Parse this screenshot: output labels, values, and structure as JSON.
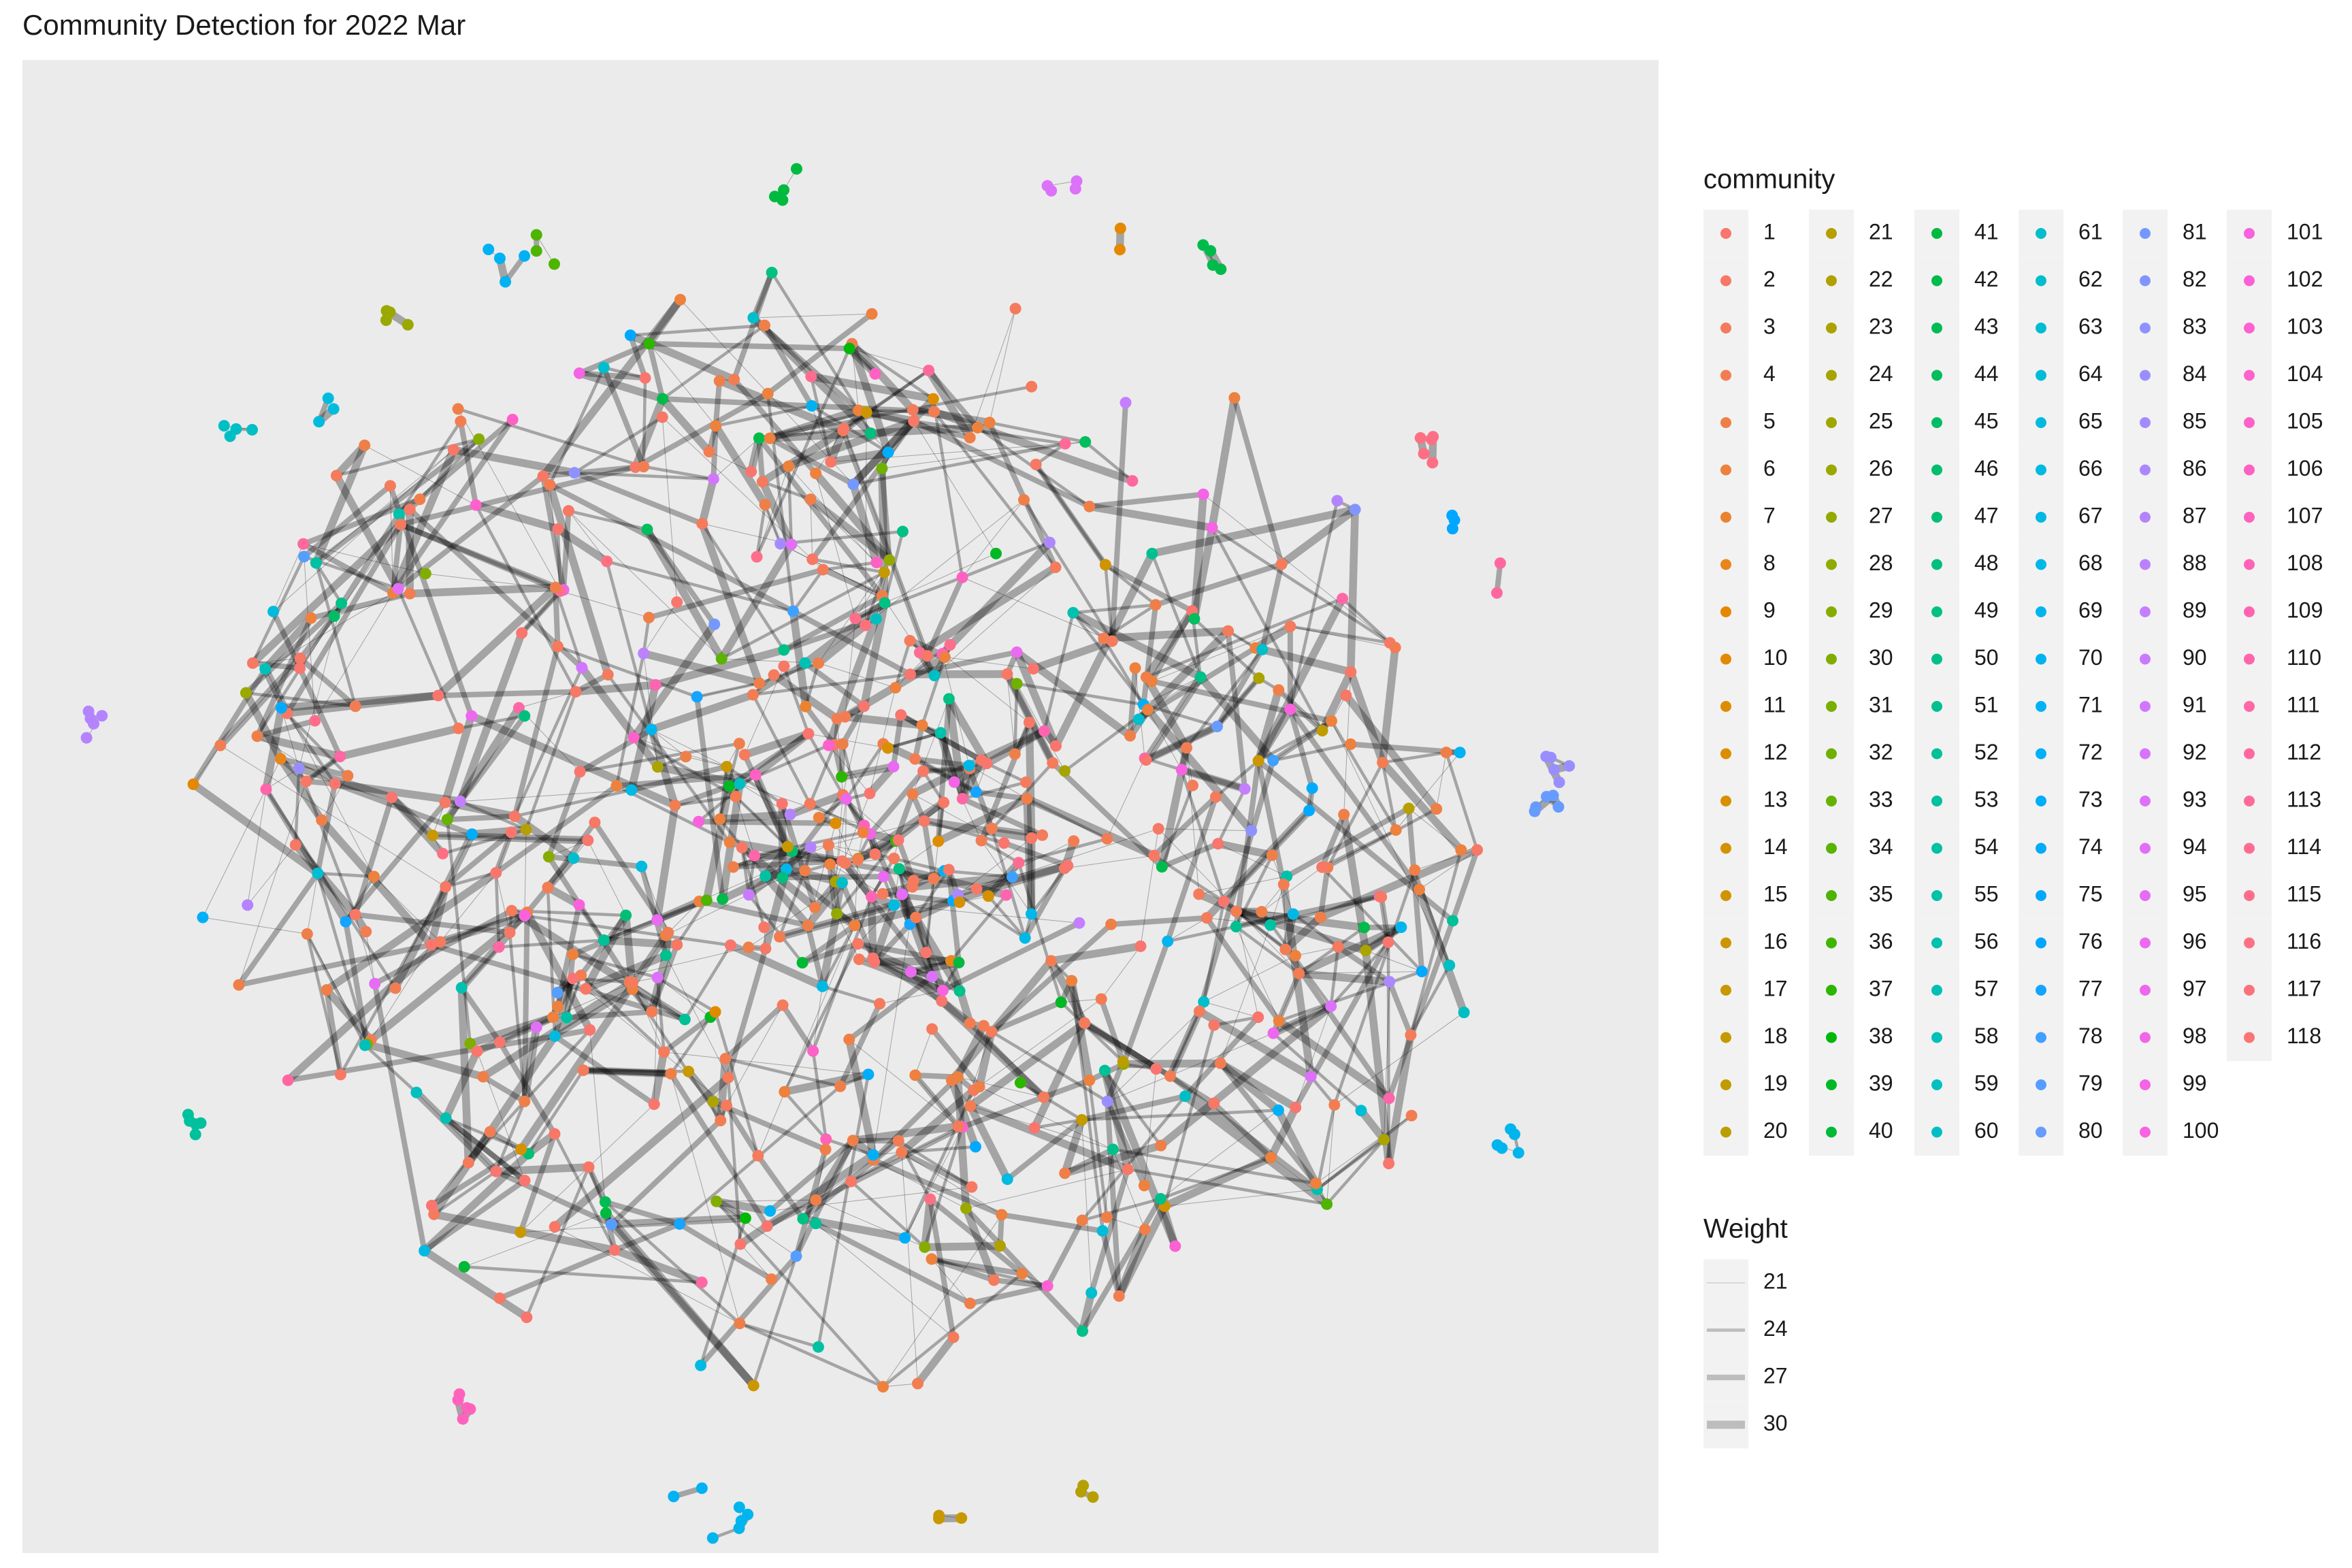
{
  "chart_data": {
    "type": "network",
    "title": "Community Detection for 2022 Mar",
    "community_legend": {
      "title": "community",
      "items": [
        "1",
        "2",
        "3",
        "4",
        "5",
        "6",
        "7",
        "8",
        "9",
        "10",
        "11",
        "12",
        "13",
        "14",
        "15",
        "16",
        "17",
        "18",
        "19",
        "20",
        "21",
        "22",
        "23",
        "24",
        "25",
        "26",
        "27",
        "28",
        "29",
        "30",
        "31",
        "32",
        "33",
        "34",
        "35",
        "36",
        "37",
        "38",
        "39",
        "40",
        "41",
        "42",
        "43",
        "44",
        "45",
        "46",
        "47",
        "48",
        "49",
        "50",
        "51",
        "52",
        "53",
        "54",
        "55",
        "56",
        "57",
        "58",
        "59",
        "60",
        "61",
        "62",
        "63",
        "64",
        "65",
        "66",
        "67",
        "68",
        "69",
        "70",
        "71",
        "72",
        "73",
        "74",
        "75",
        "76",
        "77",
        "78",
        "79",
        "80",
        "81",
        "82",
        "83",
        "84",
        "85",
        "86",
        "87",
        "88",
        "89",
        "90",
        "91",
        "92",
        "93",
        "94",
        "95",
        "96",
        "97",
        "98",
        "99",
        "100",
        "101",
        "102",
        "103",
        "104",
        "105",
        "106",
        "107",
        "108",
        "109",
        "110",
        "111",
        "112",
        "113",
        "114",
        "115",
        "116",
        "117",
        "118"
      ]
    },
    "weight_legend": {
      "title": "Weight",
      "values": [
        21,
        24,
        27,
        30
      ]
    }
  }
}
